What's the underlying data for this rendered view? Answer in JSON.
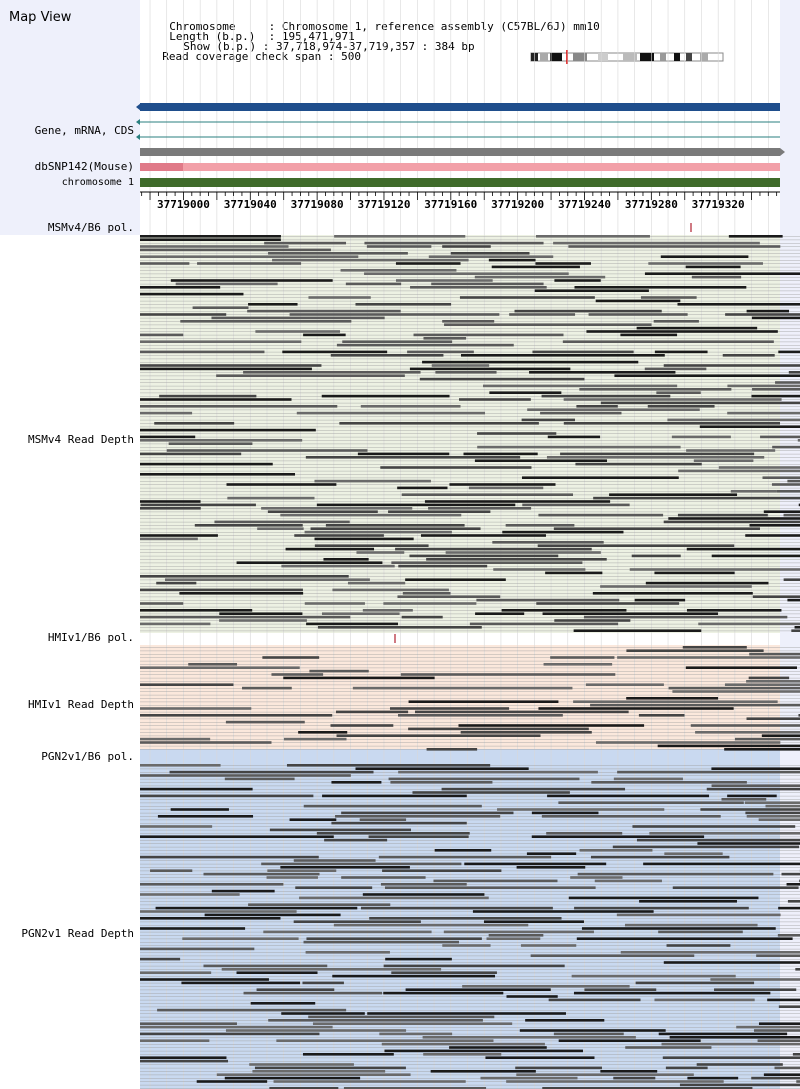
{
  "page_title": "Map View",
  "info": {
    "chromosome_label": "Chromosome",
    "chromosome_value": "Chromosome 1, reference assembly (C57BL/6J) mm10",
    "length_label": "Length (b.p.)",
    "length_value": "195,471,971",
    "show_label": "Show (b.p.)",
    "show_value": "37,718,974-37,719,357 : 384 bp",
    "coverage_label": "Read coverage check span",
    "coverage_value": "500"
  },
  "tracks": {
    "gene": "Gene, mRNA, CDS",
    "dbsnp": "dbSNP142(Mouse)",
    "chrom": "chromosome 1",
    "msm_pol": "MSMv4/B6 pol.",
    "msm_depth": "MSMv4 Read Depth",
    "hmi_pol": "HMIv1/B6 pol.",
    "hmi_depth": "HMIv1 Read Depth",
    "pgn_pol": "PGN2v1/B6 pol.",
    "pgn_depth": "PGN2v1 Read Depth"
  },
  "ruler": {
    "start_bp": 37718974,
    "end_bp": 37719357,
    "tick_labels": [
      "37719000",
      "37719040",
      "37719080",
      "37719120",
      "37719160",
      "37719200",
      "37719240",
      "37719280",
      "37719320"
    ]
  },
  "colors": {
    "gene_bar": "#1f4e8c",
    "dbsnp_bar": "#f2a0a8",
    "chrom_bar": "#3f6b2a",
    "msm_bg": "#edf1e3",
    "hmi_bg": "#fbe8dc",
    "pgn_bg": "#c9d9f0",
    "read_dark": "#1a1a1a",
    "read_gray": "#5a5a5a"
  },
  "icons": [
    "chromosome-ideogram-icon",
    "left-arrow-icon",
    "right-arrow-icon"
  ]
}
